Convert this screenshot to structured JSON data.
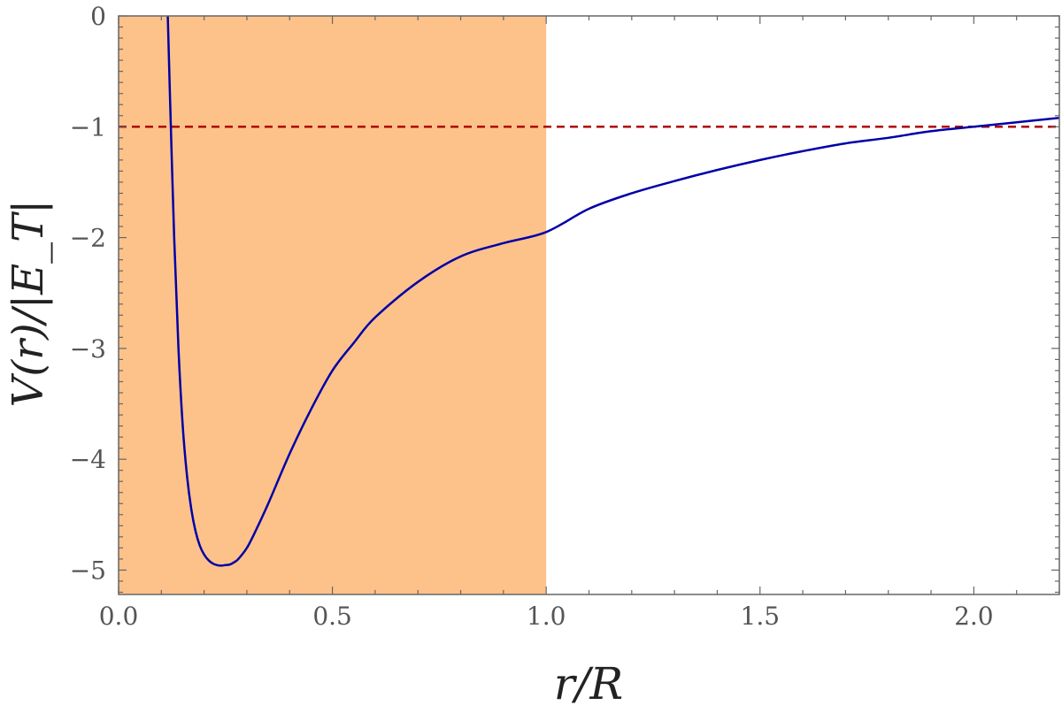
{
  "chart_data": {
    "type": "line",
    "title": "",
    "xlabel": "r/R",
    "ylabel": "V(r)/|E_T|",
    "xlim": [
      0,
      2.2
    ],
    "ylim": [
      -5.22,
      0
    ],
    "x_ticks": [
      {
        "value": 0.0,
        "label": "0.0"
      },
      {
        "value": 0.5,
        "label": "0.5"
      },
      {
        "value": 1.0,
        "label": "1.0"
      },
      {
        "value": 1.5,
        "label": "1.5"
      },
      {
        "value": 2.0,
        "label": "2.0"
      }
    ],
    "y_ticks": [
      {
        "value": 0,
        "label": "0"
      },
      {
        "value": -1,
        "label": "−1"
      },
      {
        "value": -2,
        "label": "−2"
      },
      {
        "value": -3,
        "label": "−3"
      },
      {
        "value": -4,
        "label": "−4"
      },
      {
        "value": -5,
        "label": "−5"
      }
    ],
    "shaded_region": {
      "x": [
        0,
        1.0
      ],
      "color": "#FDC28A"
    },
    "reference_line": {
      "y": -1,
      "style": "dashed",
      "color": "#B00000"
    },
    "series": [
      {
        "color": "#0000A8",
        "x": [
          0.115,
          0.12,
          0.13,
          0.14,
          0.15,
          0.16,
          0.17,
          0.18,
          0.19,
          0.2,
          0.21,
          0.22,
          0.23,
          0.24,
          0.25,
          0.26,
          0.27,
          0.28,
          0.3,
          0.32,
          0.35,
          0.4,
          0.45,
          0.5,
          0.55,
          0.6,
          0.7,
          0.8,
          0.9,
          1.0,
          1.1,
          1.2,
          1.3,
          1.4,
          1.5,
          1.6,
          1.7,
          1.8,
          1.9,
          2.0,
          2.1,
          2.2
        ],
        "y": [
          0.0,
          -0.7,
          -2.0,
          -3.0,
          -3.7,
          -4.15,
          -4.45,
          -4.65,
          -4.78,
          -4.86,
          -4.91,
          -4.94,
          -4.955,
          -4.96,
          -4.955,
          -4.95,
          -4.93,
          -4.9,
          -4.8,
          -4.65,
          -4.4,
          -3.95,
          -3.55,
          -3.2,
          -2.95,
          -2.72,
          -2.4,
          -2.17,
          -2.05,
          -1.95,
          -1.74,
          -1.6,
          -1.49,
          -1.39,
          -1.3,
          -1.22,
          -1.15,
          -1.1,
          -1.04,
          -1.0,
          -0.96,
          -0.92
        ]
      }
    ]
  }
}
